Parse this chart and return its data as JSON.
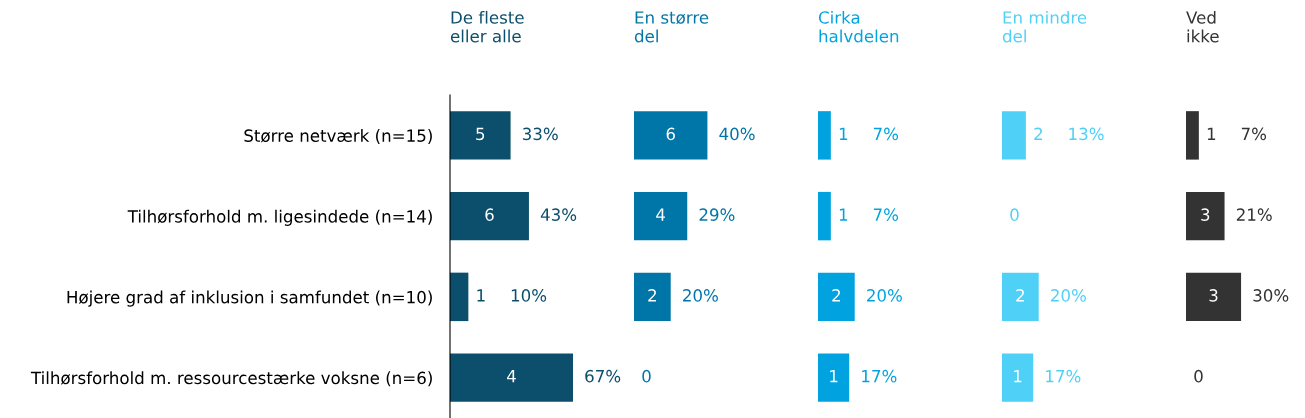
{
  "chart_data": [
    {
      "type": "bar",
      "orientation": "horizontal",
      "title": "De fleste\neller alle",
      "categories": [
        "Større netværk (n=15)",
        "Tilhørsforhold m. ligesindede (n=14)",
        "Højere grad af inklusion i samfundet (n=10)",
        "Tilhørsforhold m. ressourcestærke voksne (n=6)"
      ],
      "tick_labels": "y",
      "series": [
        {
          "color": "#0b4f6c",
          "values": [
            33,
            43,
            10,
            67
          ],
          "value_labels": [
            "33%",
            "43%",
            "10%",
            "67%"
          ]
        }
      ],
      "annotations": [
        "5",
        "6",
        "1",
        "4"
      ]
    },
    {
      "type": "bar",
      "orientation": "horizontal",
      "title": "En større\ndel",
      "tick_labels": false,
      "series": [
        {
          "color": "#0076a8",
          "values": [
            40,
            29,
            20,
            0
          ],
          "value_labels": [
            "40%",
            "29%",
            "20%",
            null
          ]
        }
      ],
      "annotations": [
        "6",
        "4",
        "2",
        "0"
      ]
    },
    {
      "type": "bar",
      "orientation": "horizontal",
      "title": "Cirka\nhalvdelen",
      "tick_labels": false,
      "series": [
        {
          "color": "#00a3e0",
          "values": [
            7,
            7,
            20,
            17
          ],
          "value_labels": [
            "7%",
            "7%",
            "20%",
            "17%"
          ]
        }
      ],
      "annotations": [
        "1",
        "1",
        "2",
        "1"
      ]
    },
    {
      "type": "bar",
      "orientation": "horizontal",
      "title": "En mindre\ndel",
      "tick_labels": false,
      "series": [
        {
          "color": "#4fd0f7",
          "values": [
            13,
            0,
            20,
            17
          ],
          "value_labels": [
            "13%",
            null,
            "20%",
            "17%"
          ]
        }
      ],
      "annotations": [
        "2",
        "0",
        "2",
        "1"
      ]
    },
    {
      "type": "bar",
      "orientation": "horizontal",
      "title": "Ved\nikke",
      "tick_labels": false,
      "series": [
        {
          "color": "#333333",
          "values": [
            7,
            21,
            30,
            0
          ],
          "value_labels": [
            "7%",
            "21%",
            "30%",
            null
          ]
        }
      ],
      "annotations": [
        "1",
        "3",
        "3",
        "0"
      ]
    }
  ]
}
